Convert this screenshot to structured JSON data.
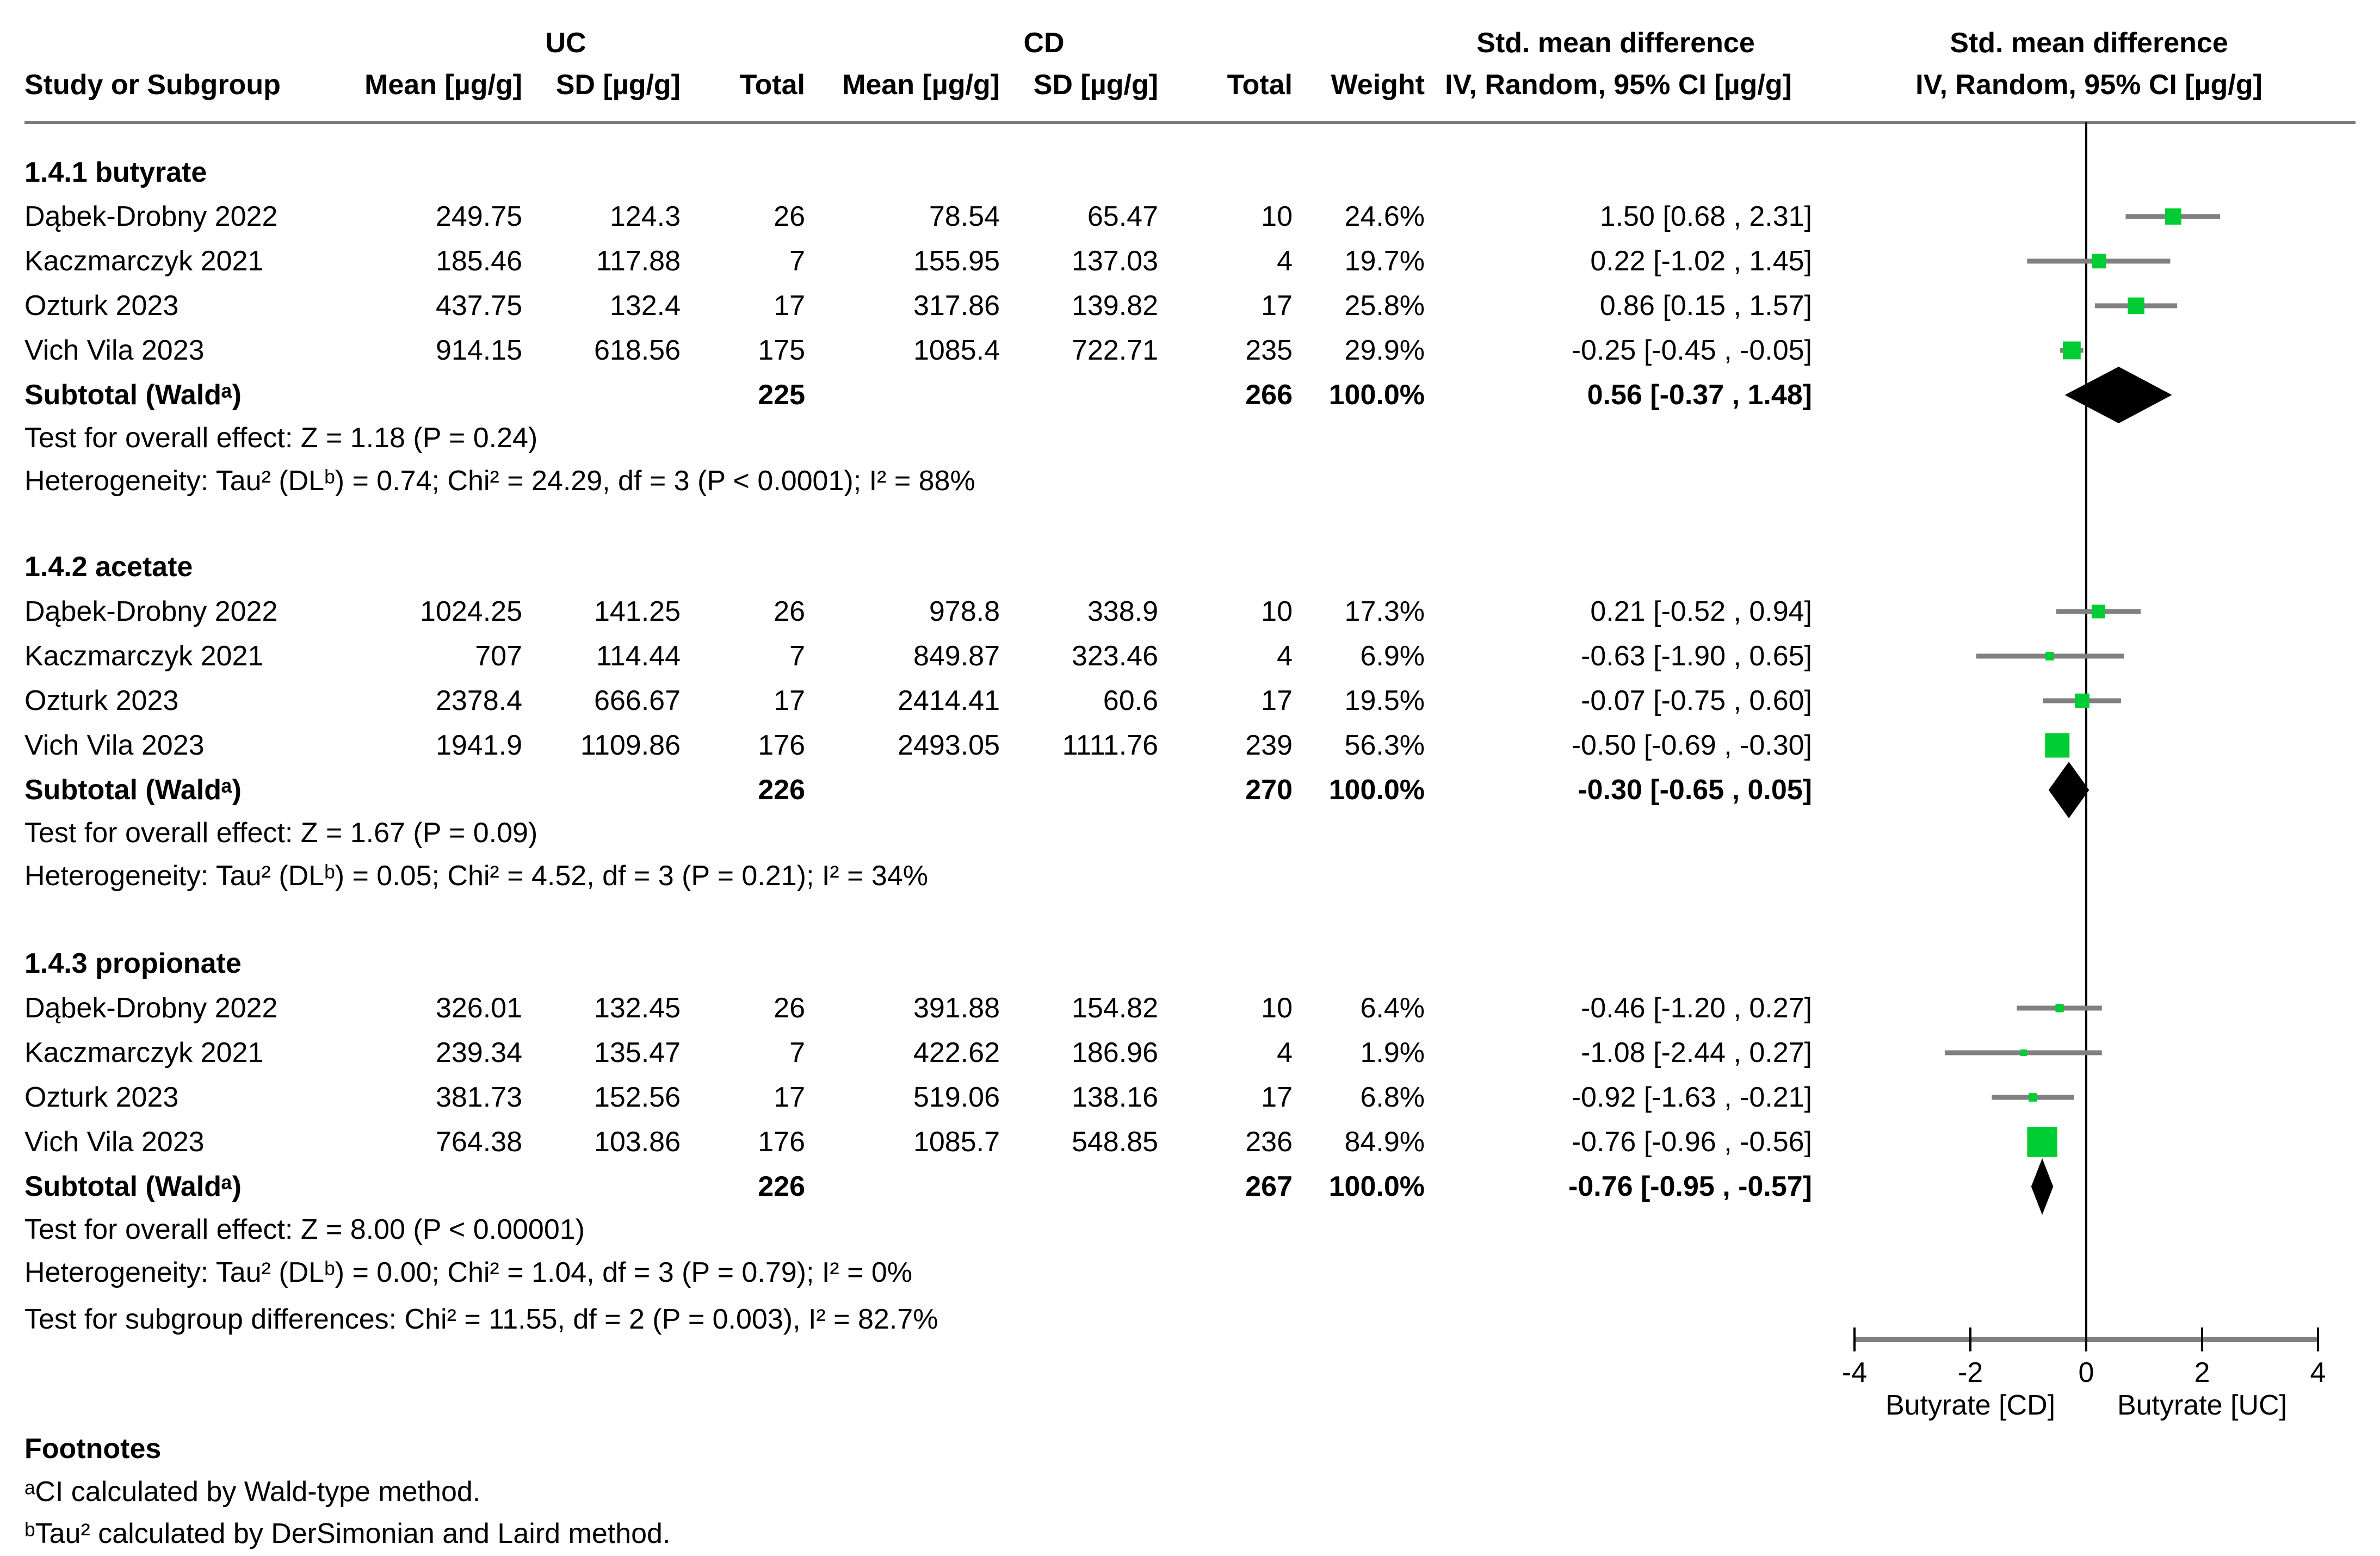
{
  "header": {
    "group_uc": "UC",
    "group_cd": "CD",
    "smd_text_title": "Std. mean difference",
    "smd_plot_title": "Std. mean difference",
    "col_study": "Study or Subgroup",
    "col_mean_uc": "Mean [µg/g]",
    "col_sd_uc": "SD [µg/g]",
    "col_total_uc": "Total",
    "col_mean_cd": "Mean [µg/g]",
    "col_sd_cd": "SD [µg/g]",
    "col_total_cd": "Total",
    "col_weight": "Weight",
    "col_ci_text": "IV, Random, 95% CI [µg/g]",
    "col_ci_plot": "IV, Random, 95% CI [µg/g]"
  },
  "sections": [
    {
      "title": "1.4.1 butyrate",
      "rows": [
        {
          "study": "Dąbek-Drobny 2022",
          "mean_uc": "249.75",
          "sd_uc": "124.3",
          "total_uc": "26",
          "mean_cd": "78.54",
          "sd_cd": "65.47",
          "total_cd": "10",
          "weight": "24.6%",
          "ci": "1.50 [0.68 , 2.31]"
        },
        {
          "study": "Kaczmarczyk 2021",
          "mean_uc": "185.46",
          "sd_uc": "117.88",
          "total_uc": "7",
          "mean_cd": "155.95",
          "sd_cd": "137.03",
          "total_cd": "4",
          "weight": "19.7%",
          "ci": "0.22 [-1.02 , 1.45]"
        },
        {
          "study": "Ozturk 2023",
          "mean_uc": "437.75",
          "sd_uc": "132.4",
          "total_uc": "17",
          "mean_cd": "317.86",
          "sd_cd": "139.82",
          "total_cd": "17",
          "weight": "25.8%",
          "ci": "0.86 [0.15 , 1.57]"
        },
        {
          "study": "Vich Vila 2023",
          "mean_uc": "914.15",
          "sd_uc": "618.56",
          "total_uc": "175",
          "mean_cd": "1085.4",
          "sd_cd": "722.71",
          "total_cd": "235",
          "weight": "29.9%",
          "ci": "-0.25 [-0.45 , -0.05]"
        }
      ],
      "subtotal": {
        "label": "Subtotal (Waldᵃ)",
        "total_uc": "225",
        "total_cd": "266",
        "weight": "100.0%",
        "ci": "0.56 [-0.37 , 1.48]"
      },
      "overall": "Test for overall effect: Z = 1.18 (P = 0.24)",
      "heterogeneity": "Heterogeneity: Tau² (DLᵇ) = 0.74; Chi² = 24.29, df = 3 (P < 0.0001); I² = 88%"
    },
    {
      "title": "1.4.2 acetate",
      "rows": [
        {
          "study": "Dąbek-Drobny 2022",
          "mean_uc": "1024.25",
          "sd_uc": "141.25",
          "total_uc": "26",
          "mean_cd": "978.8",
          "sd_cd": "338.9",
          "total_cd": "10",
          "weight": "17.3%",
          "ci": "0.21 [-0.52 , 0.94]"
        },
        {
          "study": "Kaczmarczyk 2021",
          "mean_uc": "707",
          "sd_uc": "114.44",
          "total_uc": "7",
          "mean_cd": "849.87",
          "sd_cd": "323.46",
          "total_cd": "4",
          "weight": "6.9%",
          "ci": "-0.63 [-1.90 , 0.65]"
        },
        {
          "study": "Ozturk 2023",
          "mean_uc": "2378.4",
          "sd_uc": "666.67",
          "total_uc": "17",
          "mean_cd": "2414.41",
          "sd_cd": "60.6",
          "total_cd": "17",
          "weight": "19.5%",
          "ci": "-0.07 [-0.75 , 0.60]"
        },
        {
          "study": "Vich Vila 2023",
          "mean_uc": "1941.9",
          "sd_uc": "1109.86",
          "total_uc": "176",
          "mean_cd": "2493.05",
          "sd_cd": "1111.76",
          "total_cd": "239",
          "weight": "56.3%",
          "ci": "-0.50 [-0.69 , -0.30]"
        }
      ],
      "subtotal": {
        "label": "Subtotal (Waldᵃ)",
        "total_uc": "226",
        "total_cd": "270",
        "weight": "100.0%",
        "ci": "-0.30 [-0.65 , 0.05]"
      },
      "overall": "Test for overall effect: Z = 1.67 (P = 0.09)",
      "heterogeneity": "Heterogeneity: Tau² (DLᵇ) = 0.05; Chi² = 4.52, df = 3 (P = 0.21); I² = 34%"
    },
    {
      "title": "1.4.3 propionate",
      "rows": [
        {
          "study": "Dąbek-Drobny 2022",
          "mean_uc": "326.01",
          "sd_uc": "132.45",
          "total_uc": "26",
          "mean_cd": "391.88",
          "sd_cd": "154.82",
          "total_cd": "10",
          "weight": "6.4%",
          "ci": "-0.46 [-1.20 , 0.27]"
        },
        {
          "study": "Kaczmarczyk 2021",
          "mean_uc": "239.34",
          "sd_uc": "135.47",
          "total_uc": "7",
          "mean_cd": "422.62",
          "sd_cd": "186.96",
          "total_cd": "4",
          "weight": "1.9%",
          "ci": "-1.08 [-2.44 , 0.27]"
        },
        {
          "study": "Ozturk 2023",
          "mean_uc": "381.73",
          "sd_uc": "152.56",
          "total_uc": "17",
          "mean_cd": "519.06",
          "sd_cd": "138.16",
          "total_cd": "17",
          "weight": "6.8%",
          "ci": "-0.92 [-1.63 , -0.21]"
        },
        {
          "study": "Vich Vila 2023",
          "mean_uc": "764.38",
          "sd_uc": "103.86",
          "total_uc": "176",
          "mean_cd": "1085.7",
          "sd_cd": "548.85",
          "total_cd": "236",
          "weight": "84.9%",
          "ci": "-0.76 [-0.96 , -0.56]"
        }
      ],
      "subtotal": {
        "label": "Subtotal (Waldᵃ)",
        "total_uc": "226",
        "total_cd": "267",
        "weight": "100.0%",
        "ci": "-0.76 [-0.95 , -0.57]"
      },
      "overall": "Test for overall effect: Z = 8.00 (P < 0.00001)",
      "heterogeneity": "Heterogeneity: Tau² (DLᵇ) = 0.00; Chi² = 1.04, df = 3 (P = 0.79); I² = 0%"
    }
  ],
  "subgroup_test": "Test for subgroup differences: Chi² = 11.55, df = 2 (P = 0.003), I² = 82.7%",
  "footnotes": {
    "title": "Footnotes",
    "a": "ᵃCI calculated by Wald-type method.",
    "b": "ᵇTau² calculated by DerSimonian and Laird method."
  },
  "chart_data": {
    "type": "forest",
    "effect_measure": "Std. mean difference (IV, Random, 95% CI [µg/g])",
    "xlim": [
      -4,
      4
    ],
    "ticks": [
      -4,
      -2,
      0,
      2,
      4
    ],
    "xlabel_left": "Butyrate [CD]",
    "xlabel_right": "Butyrate [UC]",
    "marker_color": "#00cc33",
    "ci_color": "#808080",
    "diamond_color": "#000000",
    "sections": [
      {
        "name": "1.4.1 butyrate",
        "studies": [
          {
            "label": "Dąbek-Drobny 2022",
            "est": 1.5,
            "lo": 0.68,
            "hi": 2.31,
            "weight": 24.6
          },
          {
            "label": "Kaczmarczyk 2021",
            "est": 0.22,
            "lo": -1.02,
            "hi": 1.45,
            "weight": 19.7
          },
          {
            "label": "Ozturk 2023",
            "est": 0.86,
            "lo": 0.15,
            "hi": 1.57,
            "weight": 25.8
          },
          {
            "label": "Vich Vila 2023",
            "est": -0.25,
            "lo": -0.45,
            "hi": -0.05,
            "weight": 29.9
          }
        ],
        "subtotal": {
          "est": 0.56,
          "lo": -0.37,
          "hi": 1.48
        }
      },
      {
        "name": "1.4.2 acetate",
        "studies": [
          {
            "label": "Dąbek-Drobny 2022",
            "est": 0.21,
            "lo": -0.52,
            "hi": 0.94,
            "weight": 17.3
          },
          {
            "label": "Kaczmarczyk 2021",
            "est": -0.63,
            "lo": -1.9,
            "hi": 0.65,
            "weight": 6.9
          },
          {
            "label": "Ozturk 2023",
            "est": -0.07,
            "lo": -0.75,
            "hi": 0.6,
            "weight": 19.5
          },
          {
            "label": "Vich Vila 2023",
            "est": -0.5,
            "lo": -0.69,
            "hi": -0.3,
            "weight": 56.3
          }
        ],
        "subtotal": {
          "est": -0.3,
          "lo": -0.65,
          "hi": 0.05
        }
      },
      {
        "name": "1.4.3 propionate",
        "studies": [
          {
            "label": "Dąbek-Drobny 2022",
            "est": -0.46,
            "lo": -1.2,
            "hi": 0.27,
            "weight": 6.4
          },
          {
            "label": "Kaczmarczyk 2021",
            "est": -1.08,
            "lo": -2.44,
            "hi": 0.27,
            "weight": 1.9
          },
          {
            "label": "Ozturk 2023",
            "est": -0.92,
            "lo": -1.63,
            "hi": -0.21,
            "weight": 6.8
          },
          {
            "label": "Vich Vila 2023",
            "est": -0.76,
            "lo": -0.96,
            "hi": -0.56,
            "weight": 84.9
          }
        ],
        "subtotal": {
          "est": -0.76,
          "lo": -0.95,
          "hi": -0.57
        }
      }
    ]
  }
}
